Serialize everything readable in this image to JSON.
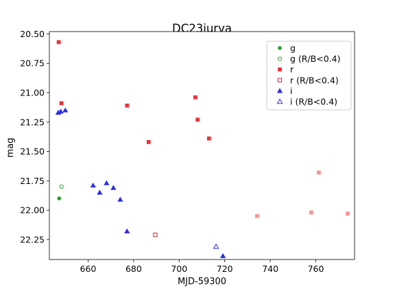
{
  "chart_data": {
    "type": "scatter",
    "title": "DC23jurva",
    "xlabel": "MJD-59300",
    "ylabel": "mag",
    "xlim": [
      643,
      777
    ],
    "ylim": [
      22.42,
      20.48
    ],
    "y_inverted": true,
    "grid": false,
    "legend_position": "top-right",
    "x_ticks": [
      660,
      680,
      700,
      720,
      740,
      760
    ],
    "y_ticks": [
      20.5,
      20.75,
      21.0,
      21.25,
      21.5,
      21.75,
      22.0,
      22.25
    ],
    "x_tick_labels": [
      "660",
      "680",
      "700",
      "720",
      "740",
      "760"
    ],
    "y_tick_labels": [
      "20.50",
      "20.75",
      "21.00",
      "21.25",
      "21.50",
      "21.75",
      "22.00",
      "22.25"
    ],
    "series": [
      {
        "name": "g",
        "marker": "circle",
        "filled": true,
        "color": "#2ca02c",
        "points": [
          [
            647.3,
            21.9
          ]
        ]
      },
      {
        "name": "g (R/B<0.4)",
        "marker": "circle",
        "filled": false,
        "color": "#2ca02c",
        "points": [
          [
            648.3,
            21.8
          ]
        ]
      },
      {
        "name": "r",
        "marker": "square",
        "filled": true,
        "color": "#e8353a",
        "points": [
          [
            647.1,
            20.57
          ],
          [
            648.3,
            21.09
          ],
          [
            677.1,
            21.11
          ],
          [
            686.6,
            21.42
          ],
          [
            707.1,
            21.04
          ],
          [
            708.1,
            21.23
          ],
          [
            713.1,
            21.39
          ]
        ]
      },
      {
        "name": "r (R/B<0.4)",
        "marker": "square",
        "filled": false,
        "color": "#c0282c",
        "points": [
          [
            689.5,
            22.21
          ]
        ]
      },
      {
        "name": "",
        "marker": "square",
        "filled": true,
        "color": "#f79497",
        "points": [
          [
            734.2,
            22.05
          ],
          [
            758.0,
            22.02
          ],
          [
            761.3,
            21.68
          ],
          [
            774.0,
            22.03
          ]
        ]
      },
      {
        "name": "i",
        "marker": "triangle",
        "filled": true,
        "color": "#2b2fe8",
        "points": [
          [
            646.9,
            21.17
          ],
          [
            648.0,
            21.16
          ],
          [
            650.0,
            21.15
          ],
          [
            662.2,
            21.79
          ],
          [
            665.1,
            21.85
          ],
          [
            668.1,
            21.77
          ],
          [
            671.1,
            21.81
          ],
          [
            674.1,
            21.91
          ],
          [
            677.1,
            22.18
          ],
          [
            719.2,
            22.39
          ]
        ]
      },
      {
        "name": "i (R/B<0.4)",
        "marker": "triangle",
        "filled": false,
        "color": "#2b2fe8",
        "points": [
          [
            716.2,
            22.31
          ]
        ]
      }
    ]
  }
}
